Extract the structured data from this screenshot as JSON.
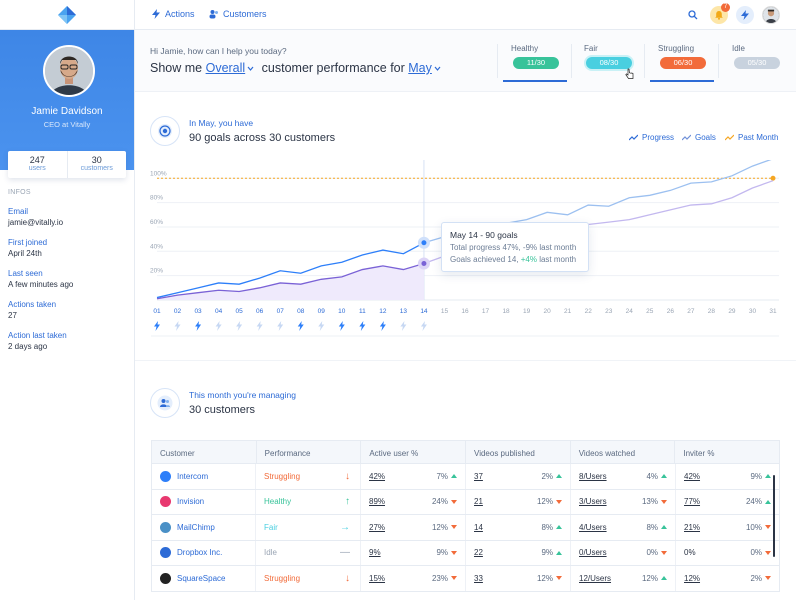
{
  "topbar": {
    "nav": [
      {
        "label": "Actions",
        "icon": "bolt-icon"
      },
      {
        "label": "Customers",
        "icon": "users-icon"
      }
    ],
    "notification_count": "7"
  },
  "profile": {
    "name": "Jamie Davidson",
    "role": "CEO at Vitally",
    "stats": [
      {
        "value": "247",
        "label": "users"
      },
      {
        "value": "30",
        "label": "customers"
      }
    ],
    "infos_heading": "INFOS",
    "infos": [
      {
        "key": "Email",
        "value": "jamie@vitally.io"
      },
      {
        "key": "First joined",
        "value": "April 24th"
      },
      {
        "key": "Last seen",
        "value": "A few minutes ago"
      },
      {
        "key": "Actions taken",
        "value": "27"
      },
      {
        "key": "Action last taken",
        "value": "2 days ago"
      }
    ]
  },
  "query": {
    "greeting": "Hi Jamie, how can I help you today?",
    "prefix": "Show me",
    "metric": "Overall",
    "middle": "customer performance for",
    "period": "May"
  },
  "filters": [
    {
      "label": "Healthy",
      "count": "11/30",
      "color": "#38c39a",
      "active": true
    },
    {
      "label": "Fair",
      "count": "08/30",
      "color": "#49cfe0",
      "active": false
    },
    {
      "label": "Struggling",
      "count": "06/30",
      "color": "#f26b3a",
      "active": true
    },
    {
      "label": "Idle",
      "count": "05/30",
      "color": "#b8c4d3",
      "active": false
    }
  ],
  "goals": {
    "subtitle": "In May, you have",
    "title": "90 goals across 30 customers",
    "legend": [
      "Progress",
      "Goals",
      "Past Month"
    ]
  },
  "chart_data": {
    "type": "line",
    "x": [
      "01",
      "02",
      "03",
      "04",
      "05",
      "06",
      "07",
      "08",
      "09",
      "10",
      "11",
      "12",
      "13",
      "14",
      "15",
      "16",
      "17",
      "18",
      "19",
      "20",
      "21",
      "22",
      "23",
      "24",
      "25",
      "26",
      "27",
      "28",
      "29",
      "30",
      "31"
    ],
    "y_ticks": [
      "100%",
      "80%",
      "60%",
      "40%",
      "20%"
    ],
    "ylim": [
      0,
      115
    ],
    "series": [
      {
        "name": "Progress",
        "values": [
          2,
          6,
          10,
          14,
          13,
          18,
          24,
          22,
          28,
          31,
          37,
          41,
          38,
          47,
          52,
          57,
          58,
          63,
          66,
          72,
          70,
          78,
          77,
          84,
          86,
          90,
          96,
          97,
          102,
          110,
          116
        ]
      },
      {
        "name": "Goals",
        "values": [
          1,
          4,
          6,
          8,
          7,
          10,
          14,
          13,
          17,
          19,
          25,
          28,
          25,
          30,
          36,
          42,
          44,
          47,
          51,
          55,
          55,
          62,
          64,
          66,
          70,
          74,
          78,
          79,
          84,
          92,
          98
        ]
      },
      {
        "name": "Past Month",
        "values": [
          100,
          100,
          100,
          100,
          100,
          100,
          100,
          100,
          100,
          100,
          100,
          100,
          100,
          100,
          100,
          100,
          100,
          100,
          100,
          100,
          100,
          100,
          100,
          100,
          100,
          100,
          100,
          100,
          100,
          100,
          100
        ]
      }
    ],
    "actions_done": [
      true,
      false,
      true,
      false,
      false,
      false,
      false,
      true,
      false,
      true,
      true,
      true,
      false,
      false
    ]
  },
  "tooltip": {
    "title": "May 14 - 90 goals",
    "progress_text": "Total progress 47%, -9% last month",
    "goals_prefix": "Goals achieved 14,",
    "goals_delta": "+4%",
    "goals_suffix": "last month"
  },
  "customers": {
    "subtitle": "This month you're managing",
    "title": "30 customers",
    "columns": [
      "Customer",
      "Performance",
      "Active user %",
      "Videos published",
      "Videos watched",
      "Inviter %"
    ],
    "rows": [
      {
        "name": "Intercom",
        "logo_color": "#2d7ff9",
        "perf": "Struggling",
        "perf_color": "#f26b3a",
        "trend": "↓",
        "active": "42%",
        "active_pct": "7%",
        "active_dir": "up",
        "videos": "37",
        "videos_pct": "2%",
        "videos_dir": "up",
        "watched": "8/Users",
        "watched_pct": "4%",
        "watched_dir": "up",
        "inviter": "42%",
        "inviter_pct": "9%",
        "inviter_dir": "up"
      },
      {
        "name": "Invision",
        "logo_color": "#e8386f",
        "perf": "Healthy",
        "perf_color": "#38c39a",
        "trend": "↑",
        "active": "89%",
        "active_pct": "24%",
        "active_dir": "down",
        "videos": "21",
        "videos_pct": "12%",
        "videos_dir": "down",
        "watched": "3/Users",
        "watched_pct": "13%",
        "watched_dir": "down",
        "inviter": "77%",
        "inviter_pct": "24%",
        "inviter_dir": "up"
      },
      {
        "name": "MailChimp",
        "logo_color": "#4a90c6",
        "perf": "Fair",
        "perf_color": "#49cfe0",
        "trend": "→",
        "active": "27%",
        "active_pct": "12%",
        "active_dir": "down",
        "videos": "14",
        "videos_pct": "8%",
        "videos_dir": "up",
        "watched": "4/Users",
        "watched_pct": "8%",
        "watched_dir": "up",
        "inviter": "21%",
        "inviter_pct": "10%",
        "inviter_dir": "down"
      },
      {
        "name": "Dropbox Inc.",
        "logo_color": "#2d6bd6",
        "perf": "Idle",
        "perf_color": "#9aa5b4",
        "trend": "—",
        "active": "9%",
        "active_pct": "9%",
        "active_dir": "down",
        "videos": "22",
        "videos_pct": "9%",
        "videos_dir": "up",
        "watched": "0/Users",
        "watched_pct": "0%",
        "watched_dir": "down",
        "inviter": "0%",
        "inviter_pct": "0%",
        "inviter_dir": "down"
      },
      {
        "name": "SquareSpace",
        "logo_color": "#222222",
        "perf": "Struggling",
        "perf_color": "#f26b3a",
        "trend": "↓",
        "active": "15%",
        "active_pct": "23%",
        "active_dir": "down",
        "videos": "33",
        "videos_pct": "12%",
        "videos_dir": "down",
        "watched": "12/Users",
        "watched_pct": "12%",
        "watched_dir": "up",
        "inviter": "12%",
        "inviter_pct": "2%",
        "inviter_dir": "down"
      }
    ]
  }
}
